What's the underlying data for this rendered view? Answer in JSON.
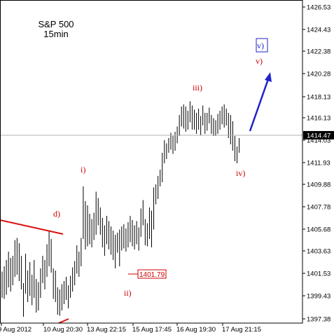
{
  "chart_data": {
    "type": "bar",
    "title": "S&P 500",
    "subtitle": "15min",
    "ylim": [
      1396.6,
      1427.2
    ],
    "y_ticks": [
      "1426.53",
      "1424.43",
      "1422.38",
      "1420.28",
      "1418.13",
      "1416.13",
      "1414.03",
      "1411.93",
      "1409.88",
      "1407.78",
      "1405.68",
      "1403.63",
      "1401.53",
      "1399.43",
      "1397.38"
    ],
    "x_tick_labels": [
      "9 Aug 2012",
      "10 Aug 20:30",
      "13 Aug 22:15",
      "15 Aug 17:45",
      "16 Aug 19:30",
      "17 Aug 21:15"
    ],
    "current_price": "1414.47",
    "marked_low": "1401.79",
    "wave_labels": [
      "d)",
      "i)",
      "ii)",
      "iii)",
      "iv)",
      "v)"
    ],
    "projection_box": "v)",
    "grid": false,
    "series_hl": [
      [
        1401.5,
        1399.0
      ],
      [
        1402.0,
        1398.9
      ],
      [
        1402.6,
        1399.3
      ],
      [
        1403.4,
        1400.0
      ],
      [
        1402.8,
        1399.6
      ],
      [
        1403.0,
        1400.2
      ],
      [
        1404.5,
        1401.0
      ],
      [
        1404.7,
        1401.2
      ],
      [
        1404.2,
        1400.6
      ],
      [
        1403.0,
        1399.8
      ],
      [
        1400.4,
        1397.2
      ],
      [
        1403.2,
        1399.4
      ],
      [
        1401.6,
        1398.6
      ],
      [
        1402.4,
        1399.2
      ],
      [
        1401.2,
        1398.3
      ],
      [
        1402.6,
        1399.0
      ],
      [
        1400.8,
        1397.6
      ],
      [
        1400.5,
        1397.8
      ],
      [
        1401.8,
        1399.0
      ],
      [
        1403.0,
        1400.4
      ],
      [
        1402.6,
        1399.8
      ],
      [
        1404.1,
        1401.0
      ],
      [
        1405.3,
        1402.0
      ],
      [
        1404.6,
        1401.4
      ],
      [
        1401.8,
        1398.9
      ],
      [
        1401.6,
        1398.6
      ],
      [
        1400.0,
        1397.4
      ],
      [
        1399.8,
        1397.3
      ],
      [
        1400.3,
        1397.8
      ],
      [
        1400.6,
        1398.4
      ],
      [
        1401.0,
        1398.8
      ],
      [
        1400.2,
        1398.0
      ],
      [
        1401.1,
        1399.0
      ],
      [
        1401.9,
        1399.6
      ],
      [
        1402.5,
        1400.2
      ],
      [
        1404.0,
        1401.3
      ],
      [
        1403.4,
        1401.0
      ],
      [
        1404.7,
        1402.0
      ],
      [
        1409.6,
        1404.6
      ],
      [
        1408.2,
        1403.6
      ],
      [
        1407.8,
        1403.9
      ],
      [
        1407.0,
        1404.1
      ],
      [
        1406.5,
        1403.8
      ],
      [
        1407.1,
        1404.5
      ],
      [
        1409.1,
        1405.0
      ],
      [
        1408.5,
        1405.9
      ],
      [
        1407.6,
        1405.0
      ],
      [
        1406.6,
        1403.8
      ],
      [
        1405.9,
        1403.0
      ],
      [
        1406.8,
        1404.1
      ],
      [
        1406.3,
        1403.6
      ],
      [
        1405.8,
        1403.1
      ],
      [
        1405.4,
        1402.6
      ],
      [
        1405.0,
        1401.8
      ],
      [
        1405.2,
        1403.3
      ],
      [
        1405.5,
        1402.0
      ],
      [
        1405.8,
        1403.5
      ],
      [
        1406.0,
        1403.7
      ],
      [
        1405.6,
        1403.4
      ],
      [
        1406.2,
        1403.8
      ],
      [
        1406.8,
        1404.3
      ],
      [
        1406.4,
        1403.9
      ],
      [
        1405.9,
        1403.6
      ],
      [
        1406.3,
        1404.1
      ],
      [
        1405.7,
        1403.5
      ],
      [
        1407.5,
        1404.8
      ],
      [
        1408.3,
        1405.9
      ],
      [
        1406.5,
        1404.0
      ],
      [
        1406.1,
        1403.9
      ],
      [
        1407.6,
        1404.6
      ],
      [
        1407.3,
        1403.8
      ],
      [
        1409.5,
        1405.5
      ],
      [
        1409.8,
        1407.9
      ],
      [
        1410.6,
        1408.4
      ],
      [
        1411.2,
        1409.6
      ],
      [
        1412.8,
        1410.0
      ],
      [
        1414.0,
        1411.8
      ],
      [
        1413.7,
        1412.2
      ],
      [
        1414.2,
        1412.8
      ],
      [
        1414.7,
        1413.1
      ],
      [
        1414.4,
        1412.7
      ],
      [
        1414.8,
        1413.0
      ],
      [
        1415.3,
        1413.7
      ],
      [
        1416.4,
        1414.4
      ],
      [
        1417.2,
        1415.3
      ],
      [
        1417.4,
        1415.1
      ],
      [
        1417.2,
        1414.8
      ],
      [
        1416.8,
        1415.0
      ],
      [
        1417.7,
        1415.7
      ],
      [
        1417.3,
        1415.0
      ],
      [
        1416.9,
        1415.0
      ],
      [
        1416.6,
        1414.6
      ],
      [
        1417.0,
        1415.0
      ],
      [
        1416.3,
        1414.5
      ],
      [
        1417.3,
        1415.4
      ],
      [
        1416.6,
        1414.6
      ],
      [
        1416.6,
        1414.9
      ],
      [
        1417.1,
        1415.6
      ],
      [
        1416.4,
        1414.6
      ],
      [
        1416.1,
        1414.4
      ],
      [
        1415.9,
        1414.4
      ],
      [
        1416.5,
        1414.6
      ],
      [
        1416.8,
        1415.0
      ],
      [
        1417.2,
        1415.5
      ],
      [
        1417.4,
        1415.2
      ],
      [
        1417.0,
        1415.4
      ],
      [
        1416.6,
        1414.2
      ],
      [
        1416.4,
        1413.6
      ],
      [
        1415.8,
        1413.0
      ],
      [
        1414.4,
        1412.0
      ],
      [
        1413.4,
        1411.8
      ],
      [
        1414.2,
        1412.8
      ]
    ]
  }
}
